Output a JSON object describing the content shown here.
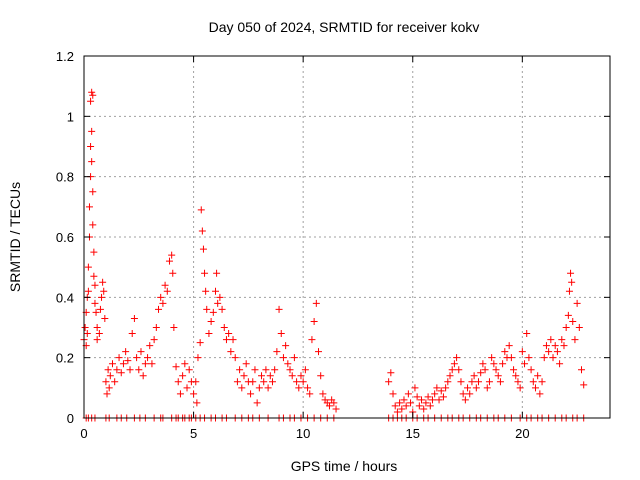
{
  "chart_data": {
    "type": "scatter",
    "title": "Day 050 of 2024, SRMTID for receiver kokv",
    "xlabel": "GPS time / hours",
    "ylabel": "SRMTID / TECUs",
    "xlim": [
      0,
      24
    ],
    "ylim": [
      0,
      1.2
    ],
    "x_ticks": [
      0,
      5,
      10,
      15,
      20
    ],
    "x_tick_labels": [
      "0",
      "5",
      "10",
      "15",
      "20"
    ],
    "y_ticks": [
      0,
      0.2,
      0.4,
      0.6,
      0.8,
      1.0,
      1.2
    ],
    "y_tick_labels": [
      "0",
      "0.2",
      "0.4",
      "0.6",
      "0.8",
      "1",
      "1.2"
    ],
    "grid": true,
    "marker": "+",
    "color": "#ff0000",
    "series": [
      {
        "name": "SRMTID",
        "points": [
          [
            0.0,
            0.26
          ],
          [
            0.05,
            0.3
          ],
          [
            0.1,
            0.24
          ],
          [
            0.1,
            0.35
          ],
          [
            0.15,
            0.28
          ],
          [
            0.15,
            0.4
          ],
          [
            0.2,
            0.42
          ],
          [
            0.2,
            0.5
          ],
          [
            0.25,
            0.6
          ],
          [
            0.25,
            0.7
          ],
          [
            0.3,
            0.8
          ],
          [
            0.3,
            0.9
          ],
          [
            0.3,
            1.05
          ],
          [
            0.35,
            1.08
          ],
          [
            0.35,
            0.95
          ],
          [
            0.35,
            0.85
          ],
          [
            0.4,
            1.07
          ],
          [
            0.4,
            0.75
          ],
          [
            0.4,
            0.64
          ],
          [
            0.45,
            0.55
          ],
          [
            0.45,
            0.47
          ],
          [
            0.5,
            0.44
          ],
          [
            0.5,
            0.38
          ],
          [
            0.55,
            0.35
          ],
          [
            0.6,
            0.3
          ],
          [
            0.6,
            0.26
          ],
          [
            0.7,
            0.28
          ],
          [
            0.75,
            0.36
          ],
          [
            0.8,
            0.4
          ],
          [
            0.85,
            0.45
          ],
          [
            0.9,
            0.42
          ],
          [
            0.95,
            0.33
          ],
          [
            1.0,
            0.12
          ],
          [
            1.05,
            0.08
          ],
          [
            1.1,
            0.16
          ],
          [
            1.15,
            0.1
          ],
          [
            1.2,
            0.14
          ],
          [
            1.3,
            0.18
          ],
          [
            1.4,
            0.12
          ],
          [
            1.5,
            0.16
          ],
          [
            1.6,
            0.2
          ],
          [
            1.7,
            0.15
          ],
          [
            1.8,
            0.18
          ],
          [
            1.9,
            0.22
          ],
          [
            2.0,
            0.19
          ],
          [
            2.1,
            0.16
          ],
          [
            2.2,
            0.28
          ],
          [
            2.3,
            0.33
          ],
          [
            2.4,
            0.2
          ],
          [
            2.5,
            0.16
          ],
          [
            2.6,
            0.22
          ],
          [
            2.7,
            0.14
          ],
          [
            2.8,
            0.18
          ],
          [
            2.9,
            0.2
          ],
          [
            3.0,
            0.24
          ],
          [
            3.1,
            0.18
          ],
          [
            3.2,
            0.26
          ],
          [
            3.3,
            0.3
          ],
          [
            3.4,
            0.36
          ],
          [
            3.5,
            0.4
          ],
          [
            3.6,
            0.38
          ],
          [
            3.7,
            0.44
          ],
          [
            3.8,
            0.42
          ],
          [
            3.9,
            0.52
          ],
          [
            4.0,
            0.54
          ],
          [
            4.05,
            0.48
          ],
          [
            4.1,
            0.3
          ],
          [
            4.2,
            0.17
          ],
          [
            4.3,
            0.12
          ],
          [
            4.4,
            0.08
          ],
          [
            4.5,
            0.14
          ],
          [
            4.6,
            0.18
          ],
          [
            4.7,
            0.1
          ],
          [
            4.8,
            0.16
          ],
          [
            4.9,
            0.12
          ],
          [
            5.0,
            0.08
          ],
          [
            5.1,
            0.12
          ],
          [
            5.15,
            0.05
          ],
          [
            5.2,
            0.2
          ],
          [
            5.3,
            0.25
          ],
          [
            5.35,
            0.69
          ],
          [
            5.4,
            0.62
          ],
          [
            5.45,
            0.56
          ],
          [
            5.5,
            0.48
          ],
          [
            5.55,
            0.42
          ],
          [
            5.6,
            0.36
          ],
          [
            5.7,
            0.28
          ],
          [
            5.8,
            0.32
          ],
          [
            5.9,
            0.35
          ],
          [
            6.0,
            0.42
          ],
          [
            6.05,
            0.48
          ],
          [
            6.1,
            0.38
          ],
          [
            6.2,
            0.4
          ],
          [
            6.3,
            0.36
          ],
          [
            6.4,
            0.3
          ],
          [
            6.5,
            0.26
          ],
          [
            6.6,
            0.28
          ],
          [
            6.7,
            0.22
          ],
          [
            6.8,
            0.26
          ],
          [
            6.9,
            0.2
          ],
          [
            7.0,
            0.12
          ],
          [
            7.1,
            0.16
          ],
          [
            7.2,
            0.1
          ],
          [
            7.3,
            0.14
          ],
          [
            7.4,
            0.18
          ],
          [
            7.5,
            0.12
          ],
          [
            7.6,
            0.08
          ],
          [
            7.7,
            0.12
          ],
          [
            7.8,
            0.16
          ],
          [
            7.9,
            0.05
          ],
          [
            8.0,
            0.1
          ],
          [
            8.1,
            0.14
          ],
          [
            8.2,
            0.12
          ],
          [
            8.3,
            0.16
          ],
          [
            8.4,
            0.1
          ],
          [
            8.5,
            0.14
          ],
          [
            8.6,
            0.12
          ],
          [
            8.7,
            0.16
          ],
          [
            8.8,
            0.22
          ],
          [
            8.9,
            0.36
          ],
          [
            9.0,
            0.28
          ],
          [
            9.1,
            0.2
          ],
          [
            9.2,
            0.24
          ],
          [
            9.3,
            0.18
          ],
          [
            9.4,
            0.16
          ],
          [
            9.5,
            0.14
          ],
          [
            9.6,
            0.2
          ],
          [
            9.7,
            0.12
          ],
          [
            9.8,
            0.1
          ],
          [
            9.9,
            0.14
          ],
          [
            10.0,
            0.12
          ],
          [
            10.1,
            0.16
          ],
          [
            10.2,
            0.1
          ],
          [
            10.3,
            0.08
          ],
          [
            10.4,
            0.26
          ],
          [
            10.5,
            0.32
          ],
          [
            10.6,
            0.38
          ],
          [
            10.7,
            0.22
          ],
          [
            10.8,
            0.14
          ],
          [
            10.9,
            0.08
          ],
          [
            11.0,
            0.06
          ],
          [
            11.1,
            0.05
          ],
          [
            11.2,
            0.04
          ],
          [
            11.3,
            0.06
          ],
          [
            11.4,
            0.05
          ],
          [
            11.5,
            0.03
          ],
          [
            13.9,
            0.12
          ],
          [
            14.0,
            0.15
          ],
          [
            14.1,
            0.08
          ],
          [
            14.2,
            0.04
          ],
          [
            14.3,
            0.02
          ],
          [
            14.4,
            0.05
          ],
          [
            14.5,
            0.03
          ],
          [
            14.6,
            0.06
          ],
          [
            14.7,
            0.04
          ],
          [
            14.8,
            0.08
          ],
          [
            14.9,
            0.05
          ],
          [
            15.0,
            0.02
          ],
          [
            15.1,
            0.1
          ],
          [
            15.2,
            0.07
          ],
          [
            15.3,
            0.04
          ],
          [
            15.4,
            0.06
          ],
          [
            15.5,
            0.03
          ],
          [
            15.6,
            0.05
          ],
          [
            15.7,
            0.07
          ],
          [
            15.8,
            0.04
          ],
          [
            15.9,
            0.06
          ],
          [
            16.0,
            0.08
          ],
          [
            16.1,
            0.1
          ],
          [
            16.2,
            0.06
          ],
          [
            16.3,
            0.09
          ],
          [
            16.4,
            0.07
          ],
          [
            16.5,
            0.1
          ],
          [
            16.6,
            0.12
          ],
          [
            16.7,
            0.14
          ],
          [
            16.8,
            0.16
          ],
          [
            16.9,
            0.18
          ],
          [
            17.0,
            0.2
          ],
          [
            17.1,
            0.16
          ],
          [
            17.2,
            0.12
          ],
          [
            17.3,
            0.08
          ],
          [
            17.4,
            0.06
          ],
          [
            17.5,
            0.1
          ],
          [
            17.6,
            0.08
          ],
          [
            17.7,
            0.12
          ],
          [
            17.8,
            0.14
          ],
          [
            17.9,
            0.1
          ],
          [
            18.0,
            0.12
          ],
          [
            18.1,
            0.15
          ],
          [
            18.2,
            0.18
          ],
          [
            18.3,
            0.16
          ],
          [
            18.4,
            0.1
          ],
          [
            18.5,
            0.12
          ],
          [
            18.6,
            0.2
          ],
          [
            18.7,
            0.18
          ],
          [
            18.8,
            0.16
          ],
          [
            18.9,
            0.14
          ],
          [
            19.0,
            0.12
          ],
          [
            19.1,
            0.18
          ],
          [
            19.2,
            0.22
          ],
          [
            19.3,
            0.2
          ],
          [
            19.4,
            0.24
          ],
          [
            19.5,
            0.2
          ],
          [
            19.6,
            0.16
          ],
          [
            19.7,
            0.14
          ],
          [
            19.8,
            0.12
          ],
          [
            19.9,
            0.1
          ],
          [
            20.0,
            0.22
          ],
          [
            20.1,
            0.18
          ],
          [
            20.2,
            0.28
          ],
          [
            20.3,
            0.2
          ],
          [
            20.4,
            0.16
          ],
          [
            20.5,
            0.12
          ],
          [
            20.6,
            0.1
          ],
          [
            20.7,
            0.14
          ],
          [
            20.8,
            0.08
          ],
          [
            20.9,
            0.12
          ],
          [
            21.0,
            0.2
          ],
          [
            21.1,
            0.24
          ],
          [
            21.2,
            0.22
          ],
          [
            21.3,
            0.26
          ],
          [
            21.4,
            0.2
          ],
          [
            21.5,
            0.24
          ],
          [
            21.6,
            0.22
          ],
          [
            21.7,
            0.18
          ],
          [
            21.8,
            0.26
          ],
          [
            21.9,
            0.24
          ],
          [
            22.0,
            0.3
          ],
          [
            22.1,
            0.34
          ],
          [
            22.15,
            0.42
          ],
          [
            22.2,
            0.48
          ],
          [
            22.25,
            0.45
          ],
          [
            22.3,
            0.32
          ],
          [
            22.4,
            0.26
          ],
          [
            22.5,
            0.38
          ],
          [
            22.6,
            0.3
          ],
          [
            22.7,
            0.16
          ],
          [
            22.8,
            0.11
          ]
        ],
        "zero_x": [
          0.1,
          0.2,
          0.35,
          0.5,
          1.0,
          1.15,
          1.5,
          1.7,
          1.95,
          2.3,
          2.55,
          2.8,
          3.2,
          3.5,
          3.6,
          4.0,
          4.2,
          4.3,
          4.5,
          4.6,
          4.8,
          4.9,
          5.1,
          5.3,
          5.5,
          5.8,
          6.0,
          6.3,
          6.5,
          6.9,
          7.2,
          7.5,
          7.7,
          8.0,
          8.4,
          8.9,
          9.1,
          9.4,
          9.6,
          9.9,
          10.2,
          10.5,
          10.8,
          11.1,
          11.4,
          13.9,
          14.1,
          14.3,
          14.5,
          14.7,
          15.0,
          15.2,
          15.5,
          15.7,
          16.0,
          16.3,
          16.6,
          16.8,
          17.1,
          17.3,
          17.6,
          17.9,
          18.1,
          18.4,
          18.7,
          18.9,
          19.2,
          19.5,
          19.9,
          20.2,
          20.4,
          20.7,
          20.9,
          21.2,
          21.5,
          21.8,
          22.0,
          22.3,
          22.5,
          22.8
        ]
      }
    ]
  }
}
